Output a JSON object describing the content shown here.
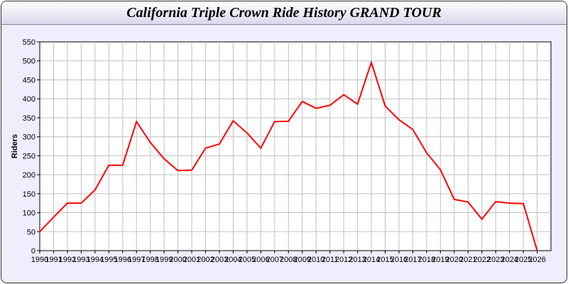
{
  "chart_data": {
    "type": "line",
    "title": "California Triple Crown Ride History GRAND TOUR",
    "xlabel": "",
    "ylabel": "Riders",
    "xlim": [
      1990,
      2027
    ],
    "ylim": [
      0,
      550
    ],
    "grid": true,
    "line_color": "#ff0000",
    "x": [
      1990,
      1991,
      1992,
      1993,
      1994,
      1995,
      1996,
      1997,
      1998,
      1999,
      2000,
      2001,
      2002,
      2003,
      2004,
      2005,
      2006,
      2007,
      2008,
      2009,
      2010,
      2011,
      2012,
      2013,
      2014,
      2015,
      2016,
      2017,
      2018,
      2019,
      2020,
      2021,
      2022,
      2023,
      2024,
      2025,
      2026
    ],
    "series": [
      {
        "values": [
          50,
          88,
          125,
          125,
          160,
          225,
          225,
          340,
          285,
          242,
          211,
          212,
          270,
          281,
          342,
          310,
          270,
          340,
          341,
          393,
          375,
          383,
          411,
          386,
          496,
          381,
          345,
          319,
          258,
          213,
          135,
          128,
          83,
          129,
          125,
          124,
          0
        ]
      }
    ],
    "yticks": [
      "0",
      "50",
      "100",
      "150",
      "200",
      "250",
      "300",
      "350",
      "400",
      "450",
      "500",
      "550"
    ],
    "xticks": [
      "1990",
      "1991",
      "1992",
      "1993",
      "1994",
      "1995",
      "1996",
      "1997",
      "1998",
      "1999",
      "2000",
      "2001",
      "2002",
      "2003",
      "2004",
      "2005",
      "2006",
      "2007",
      "2008",
      "2009",
      "2010",
      "2011",
      "2012",
      "2013",
      "2014",
      "2015",
      "2016",
      "2017",
      "2018",
      "2019",
      "2020",
      "2021",
      "2022",
      "2023",
      "2024",
      "2025",
      "2026"
    ]
  }
}
